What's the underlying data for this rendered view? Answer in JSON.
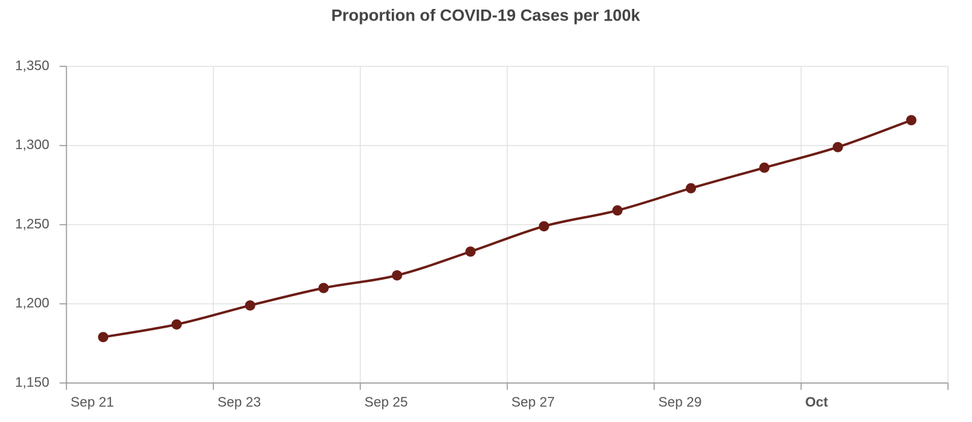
{
  "chart_data": {
    "type": "line",
    "title": "Proportion of COVID-19 Cases per 100k",
    "categories": [
      "Sep 21",
      null,
      "Sep 23",
      null,
      "Sep 25",
      null,
      "Sep 27",
      null,
      "Sep 29",
      null,
      "Oct",
      null
    ],
    "series": [
      {
        "name": null,
        "color": "#6b1c14",
        "values": [
          1179,
          1187,
          1199,
          1210,
          1218,
          1233,
          1249,
          1259,
          1273,
          1286,
          1299,
          1316
        ]
      }
    ],
    "ylim": [
      1150,
      1350
    ],
    "yticks": [
      {
        "value": 1150,
        "label": "1,150"
      },
      {
        "value": 1200,
        "label": "1,200"
      },
      {
        "value": 1250,
        "label": "1,250"
      },
      {
        "value": 1300,
        "label": "1,300"
      },
      {
        "value": 1350,
        "label": "1,350"
      }
    ],
    "grid": true
  }
}
